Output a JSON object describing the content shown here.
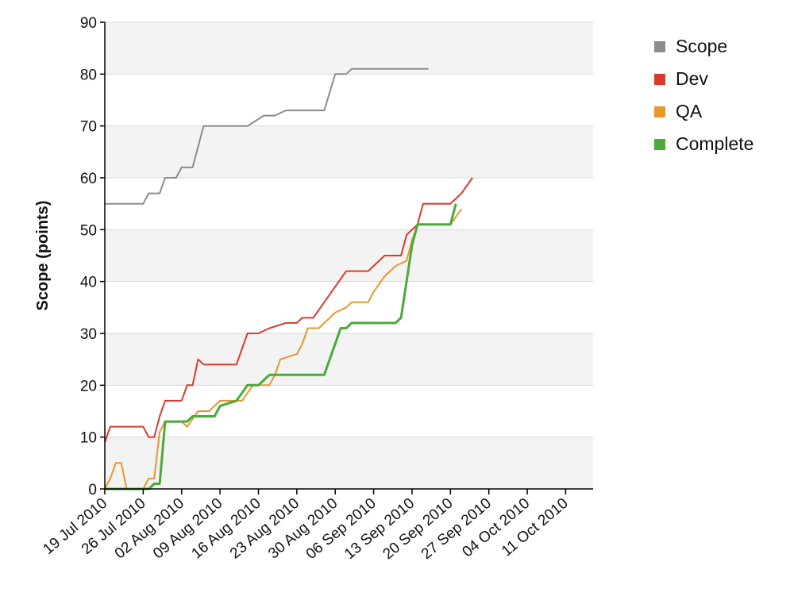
{
  "chart_data": {
    "type": "line",
    "ylabel": "Scope (points)",
    "ylim": [
      0,
      90
    ],
    "yticks": [
      0,
      10,
      20,
      30,
      40,
      50,
      60,
      70,
      80,
      90
    ],
    "xlim": [
      "2010-07-19",
      "2010-10-16"
    ],
    "xticks": [
      {
        "date": "2010-07-19",
        "label": "19 Jul 2010"
      },
      {
        "date": "2010-07-26",
        "label": "26 Jul 2010"
      },
      {
        "date": "2010-08-02",
        "label": "02 Aug 2010"
      },
      {
        "date": "2010-08-09",
        "label": "09 Aug 2010"
      },
      {
        "date": "2010-08-16",
        "label": "16 Aug 2010"
      },
      {
        "date": "2010-08-23",
        "label": "23 Aug 2010"
      },
      {
        "date": "2010-08-30",
        "label": "30 Aug 2010"
      },
      {
        "date": "2010-09-06",
        "label": "06 Sep 2010"
      },
      {
        "date": "2010-09-13",
        "label": "13 Sep 2010"
      },
      {
        "date": "2010-09-20",
        "label": "20 Sep 2010"
      },
      {
        "date": "2010-09-27",
        "label": "27 Sep 2010"
      },
      {
        "date": "2010-10-04",
        "label": "04 Oct 2010"
      },
      {
        "date": "2010-10-11",
        "label": "11 Oct 2010"
      }
    ],
    "grid": true,
    "legend_position": "top-right",
    "series": [
      {
        "name": "Scope",
        "color": "#8c8c8c",
        "points": [
          [
            "2010-07-19",
            55
          ],
          [
            "2010-07-26",
            55
          ],
          [
            "2010-07-27",
            57
          ],
          [
            "2010-07-29",
            57
          ],
          [
            "2010-07-30",
            60
          ],
          [
            "2010-08-01",
            60
          ],
          [
            "2010-08-02",
            62
          ],
          [
            "2010-08-04",
            62
          ],
          [
            "2010-08-06",
            70
          ],
          [
            "2010-08-14",
            70
          ],
          [
            "2010-08-17",
            72
          ],
          [
            "2010-08-19",
            72
          ],
          [
            "2010-08-21",
            73
          ],
          [
            "2010-08-28",
            73
          ],
          [
            "2010-08-30",
            80
          ],
          [
            "2010-09-01",
            80
          ],
          [
            "2010-09-02",
            81
          ],
          [
            "2010-09-12",
            81
          ],
          [
            "2010-09-16",
            81
          ]
        ]
      },
      {
        "name": "Dev",
        "color": "#d93a2b",
        "points": [
          [
            "2010-07-19",
            9
          ],
          [
            "2010-07-20",
            12
          ],
          [
            "2010-07-26",
            12
          ],
          [
            "2010-07-27",
            10
          ],
          [
            "2010-07-28",
            10
          ],
          [
            "2010-07-29",
            14
          ],
          [
            "2010-07-30",
            17
          ],
          [
            "2010-08-02",
            17
          ],
          [
            "2010-08-03",
            20
          ],
          [
            "2010-08-04",
            20
          ],
          [
            "2010-08-05",
            25
          ],
          [
            "2010-08-06",
            24
          ],
          [
            "2010-08-12",
            24
          ],
          [
            "2010-08-14",
            30
          ],
          [
            "2010-08-16",
            30
          ],
          [
            "2010-08-18",
            31
          ],
          [
            "2010-08-21",
            32
          ],
          [
            "2010-08-23",
            32
          ],
          [
            "2010-08-24",
            33
          ],
          [
            "2010-08-26",
            33
          ],
          [
            "2010-09-01",
            42
          ],
          [
            "2010-09-03",
            42
          ],
          [
            "2010-09-05",
            42
          ],
          [
            "2010-09-07",
            44
          ],
          [
            "2010-09-08",
            45
          ],
          [
            "2010-09-11",
            45
          ],
          [
            "2010-09-12",
            49
          ],
          [
            "2010-09-14",
            51
          ],
          [
            "2010-09-15",
            55
          ],
          [
            "2010-09-20",
            55
          ],
          [
            "2010-09-22",
            57
          ],
          [
            "2010-09-24",
            60
          ]
        ]
      },
      {
        "name": "QA",
        "color": "#e8962e",
        "points": [
          [
            "2010-07-19",
            0
          ],
          [
            "2010-07-20",
            2
          ],
          [
            "2010-07-21",
            5
          ],
          [
            "2010-07-22",
            5
          ],
          [
            "2010-07-23",
            0
          ],
          [
            "2010-07-26",
            0
          ],
          [
            "2010-07-27",
            2
          ],
          [
            "2010-07-28",
            2
          ],
          [
            "2010-07-29",
            11
          ],
          [
            "2010-07-30",
            13
          ],
          [
            "2010-08-02",
            13
          ],
          [
            "2010-08-03",
            12
          ],
          [
            "2010-08-05",
            15
          ],
          [
            "2010-08-07",
            15
          ],
          [
            "2010-08-09",
            17
          ],
          [
            "2010-08-13",
            17
          ],
          [
            "2010-08-15",
            20
          ],
          [
            "2010-08-18",
            20
          ],
          [
            "2010-08-19",
            22
          ],
          [
            "2010-08-20",
            25
          ],
          [
            "2010-08-23",
            26
          ],
          [
            "2010-08-24",
            28
          ],
          [
            "2010-08-25",
            31
          ],
          [
            "2010-08-27",
            31
          ],
          [
            "2010-08-30",
            34
          ],
          [
            "2010-09-01",
            35
          ],
          [
            "2010-09-02",
            36
          ],
          [
            "2010-09-05",
            36
          ],
          [
            "2010-09-06",
            38
          ],
          [
            "2010-09-08",
            41
          ],
          [
            "2010-09-10",
            43
          ],
          [
            "2010-09-12",
            44
          ],
          [
            "2010-09-13",
            48
          ],
          [
            "2010-09-14",
            51
          ],
          [
            "2010-09-20",
            51
          ],
          [
            "2010-09-22",
            54
          ]
        ]
      },
      {
        "name": "Complete",
        "color": "#4aaa3a",
        "points": [
          [
            "2010-07-19",
            0
          ],
          [
            "2010-07-27",
            0
          ],
          [
            "2010-07-28",
            1
          ],
          [
            "2010-07-29",
            1
          ],
          [
            "2010-07-30",
            13
          ],
          [
            "2010-08-03",
            13
          ],
          [
            "2010-08-04",
            14
          ],
          [
            "2010-08-08",
            14
          ],
          [
            "2010-08-09",
            16
          ],
          [
            "2010-08-12",
            17
          ],
          [
            "2010-08-14",
            20
          ],
          [
            "2010-08-16",
            20
          ],
          [
            "2010-08-18",
            22
          ],
          [
            "2010-08-28",
            22
          ],
          [
            "2010-08-31",
            31
          ],
          [
            "2010-09-01",
            31
          ],
          [
            "2010-09-02",
            32
          ],
          [
            "2010-09-10",
            32
          ],
          [
            "2010-09-11",
            33
          ],
          [
            "2010-09-13",
            47
          ],
          [
            "2010-09-14",
            51
          ],
          [
            "2010-09-20",
            51
          ],
          [
            "2010-09-21",
            55
          ]
        ]
      }
    ]
  }
}
